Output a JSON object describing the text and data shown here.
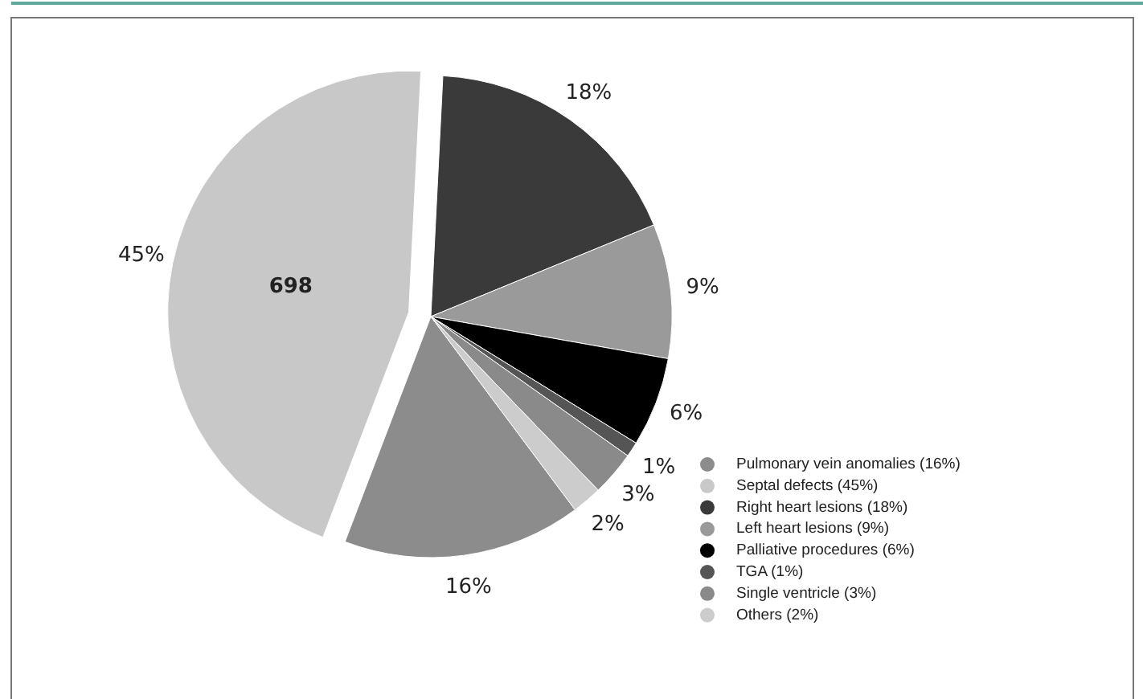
{
  "chart_data": {
    "type": "pie",
    "categories": [
      "Pulmonary vein anomalies (16%)",
      "Septal defects (45%)",
      "Right heart lesions (18%)",
      "Left heart lesions (9%)",
      "Palliative procedures (6%)",
      "TGA (1%)",
      "Single ventricle (3%)",
      "Others (2%)"
    ],
    "values": [
      16,
      45,
      18,
      9,
      6,
      1,
      3,
      2
    ],
    "colors": [
      "#8c8c8c",
      "#c8c8c8",
      "#3a3a3a",
      "#9a9a9a",
      "#000000",
      "#555555",
      "#8a8a8a",
      "#cccccc"
    ],
    "value_labels": [
      "16%",
      "45%",
      "18%",
      "9%",
      "6%",
      "1%",
      "3%",
      "2%"
    ],
    "legend": "bottom right",
    "annotations": [
      {
        "text": "698",
        "x": "Septal defects (45%)"
      }
    ]
  }
}
